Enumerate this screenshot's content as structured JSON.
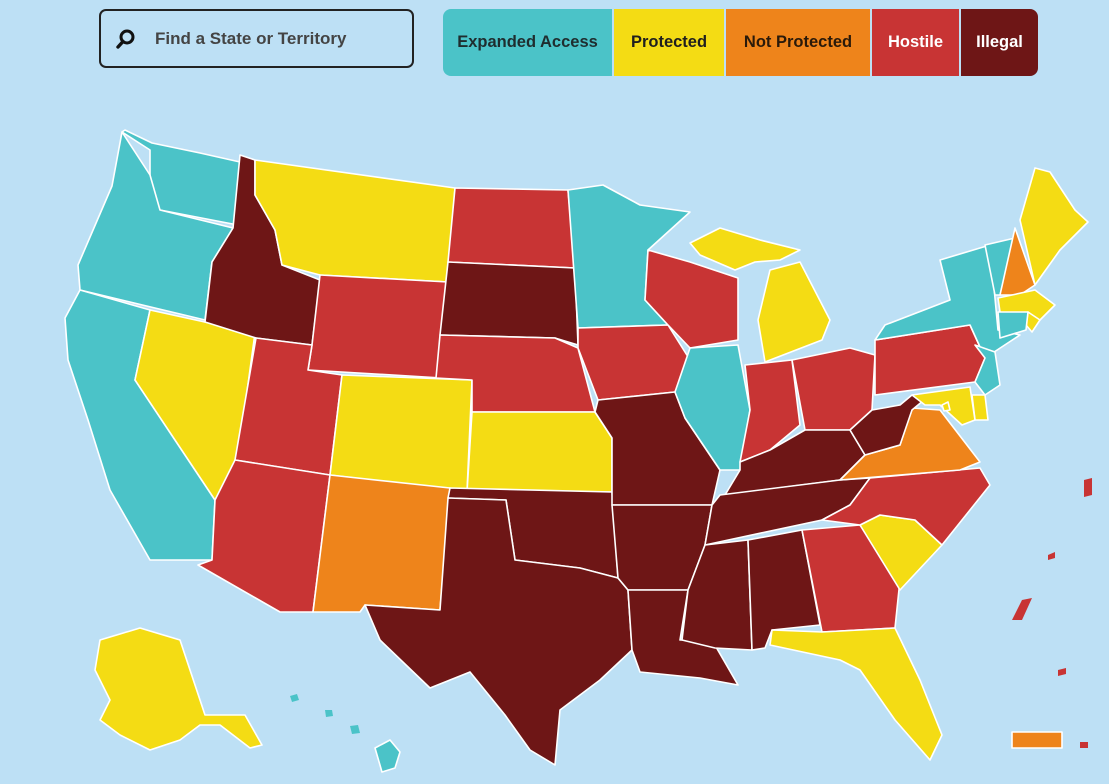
{
  "search": {
    "placeholder": "Find a State or Territory",
    "icon": "search-icon"
  },
  "legend": [
    {
      "key": "expanded",
      "label": "Expanded Access",
      "color": "#4bc3c8",
      "text_color": "#1f2d2f"
    },
    {
      "key": "protected",
      "label": "Protected",
      "color": "#f4dc14",
      "text_color": "#1f1f1f"
    },
    {
      "key": "notprotected",
      "label": "Not Protected",
      "color": "#ee841b",
      "text_color": "#2a1a0a"
    },
    {
      "key": "hostile",
      "label": "Hostile",
      "color": "#c83434",
      "text_color": "#ffffff"
    },
    {
      "key": "illegal",
      "label": "Illegal",
      "color": "#6e1616",
      "text_color": "#ffffff"
    }
  ],
  "states": [
    {
      "name": "Washington",
      "category": "expanded"
    },
    {
      "name": "Oregon",
      "category": "expanded"
    },
    {
      "name": "California",
      "category": "expanded"
    },
    {
      "name": "Nevada",
      "category": "protected"
    },
    {
      "name": "Idaho",
      "category": "illegal"
    },
    {
      "name": "Montana",
      "category": "protected"
    },
    {
      "name": "Wyoming",
      "category": "hostile"
    },
    {
      "name": "Utah",
      "category": "hostile"
    },
    {
      "name": "Arizona",
      "category": "hostile"
    },
    {
      "name": "Colorado",
      "category": "protected"
    },
    {
      "name": "New Mexico",
      "category": "notprotected"
    },
    {
      "name": "North Dakota",
      "category": "hostile"
    },
    {
      "name": "South Dakota",
      "category": "illegal"
    },
    {
      "name": "Nebraska",
      "category": "hostile"
    },
    {
      "name": "Kansas",
      "category": "protected"
    },
    {
      "name": "Oklahoma",
      "category": "illegal"
    },
    {
      "name": "Texas",
      "category": "illegal"
    },
    {
      "name": "Minnesota",
      "category": "expanded"
    },
    {
      "name": "Iowa",
      "category": "hostile"
    },
    {
      "name": "Missouri",
      "category": "illegal"
    },
    {
      "name": "Arkansas",
      "category": "illegal"
    },
    {
      "name": "Louisiana",
      "category": "illegal"
    },
    {
      "name": "Wisconsin",
      "category": "hostile"
    },
    {
      "name": "Illinois",
      "category": "expanded"
    },
    {
      "name": "Michigan",
      "category": "protected"
    },
    {
      "name": "Indiana",
      "category": "hostile"
    },
    {
      "name": "Ohio",
      "category": "hostile"
    },
    {
      "name": "Kentucky",
      "category": "illegal"
    },
    {
      "name": "Tennessee",
      "category": "illegal"
    },
    {
      "name": "Mississippi",
      "category": "illegal"
    },
    {
      "name": "Alabama",
      "category": "illegal"
    },
    {
      "name": "Georgia",
      "category": "hostile"
    },
    {
      "name": "Florida",
      "category": "protected"
    },
    {
      "name": "South Carolina",
      "category": "protected"
    },
    {
      "name": "North Carolina",
      "category": "hostile"
    },
    {
      "name": "Virginia",
      "category": "notprotected"
    },
    {
      "name": "West Virginia",
      "category": "illegal"
    },
    {
      "name": "Pennsylvania",
      "category": "hostile"
    },
    {
      "name": "New York",
      "category": "expanded"
    },
    {
      "name": "Vermont",
      "category": "expanded"
    },
    {
      "name": "New Hampshire",
      "category": "notprotected"
    },
    {
      "name": "Maine",
      "category": "protected"
    },
    {
      "name": "Massachusetts",
      "category": "protected"
    },
    {
      "name": "Rhode Island",
      "category": "protected"
    },
    {
      "name": "Connecticut",
      "category": "expanded"
    },
    {
      "name": "New Jersey",
      "category": "expanded"
    },
    {
      "name": "Delaware",
      "category": "protected"
    },
    {
      "name": "Maryland",
      "category": "protected"
    },
    {
      "name": "District of Columbia",
      "category": "protected"
    },
    {
      "name": "Alaska",
      "category": "protected"
    },
    {
      "name": "Hawaii",
      "category": "expanded"
    },
    {
      "name": "Puerto Rico",
      "category": "notprotected"
    },
    {
      "name": "U.S. Virgin Islands",
      "category": "hostile"
    },
    {
      "name": "Northern Mariana Islands",
      "category": "hostile"
    },
    {
      "name": "Guam",
      "category": "hostile"
    },
    {
      "name": "American Samoa",
      "category": "hostile"
    }
  ]
}
